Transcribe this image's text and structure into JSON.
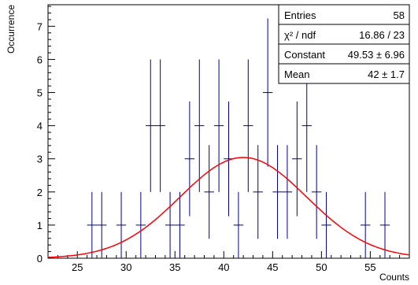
{
  "chart_data": {
    "type": "scatter",
    "title": "",
    "xlabel": "Counts",
    "ylabel": "Occurrence",
    "xlim": [
      22,
      59
    ],
    "ylim": [
      0,
      7.65
    ],
    "x_ticks": [
      "25",
      "30",
      "35",
      "40",
      "45",
      "50",
      "55"
    ],
    "x_tick_values": [
      25,
      30,
      35,
      40,
      45,
      50,
      55
    ],
    "y_ticks": [
      "0",
      "1",
      "2",
      "3",
      "4",
      "5",
      "6",
      "7"
    ],
    "y_tick_values": [
      0,
      1,
      2,
      3,
      4,
      5,
      6,
      7
    ],
    "grid": false,
    "series": [
      {
        "kind": "histogram-points",
        "color": "#00008b",
        "bin_width": 1,
        "points": [
          {
            "x": 26.5,
            "y": 1
          },
          {
            "x": 27.5,
            "y": 1
          },
          {
            "x": 29.5,
            "y": 1
          },
          {
            "x": 31.5,
            "y": 1
          },
          {
            "x": 32.5,
            "y": 4
          },
          {
            "x": 33.5,
            "y": 4
          },
          {
            "x": 34.5,
            "y": 1
          },
          {
            "x": 35.5,
            "y": 1
          },
          {
            "x": 36.5,
            "y": 3
          },
          {
            "x": 37.5,
            "y": 4
          },
          {
            "x": 38.5,
            "y": 2
          },
          {
            "x": 39.5,
            "y": 4
          },
          {
            "x": 40.5,
            "y": 3
          },
          {
            "x": 41.5,
            "y": 1
          },
          {
            "x": 42.5,
            "y": 4
          },
          {
            "x": 43.5,
            "y": 2
          },
          {
            "x": 44.5,
            "y": 5
          },
          {
            "x": 45.5,
            "y": 2
          },
          {
            "x": 46.5,
            "y": 2
          },
          {
            "x": 47.5,
            "y": 3
          },
          {
            "x": 48.5,
            "y": 4
          },
          {
            "x": 49.5,
            "y": 2
          },
          {
            "x": 50.5,
            "y": 1
          },
          {
            "x": 54.5,
            "y": 1
          },
          {
            "x": 56.5,
            "y": 1
          }
        ]
      },
      {
        "kind": "gaussian-fit",
        "color": "#ff0000",
        "constant": 49.53,
        "mean": 42,
        "sigma": 6.5,
        "scale": 0.0614
      }
    ],
    "stats_box": {
      "position": "top-right",
      "rows": [
        {
          "label": "Entries",
          "value": "58"
        },
        {
          "label": "χ² / ndf",
          "value": "16.86 / 23"
        },
        {
          "label": "Constant",
          "value": "49.53 ± 6.96"
        },
        {
          "label": "Mean",
          "value": "42 ± 1.7"
        }
      ]
    }
  }
}
